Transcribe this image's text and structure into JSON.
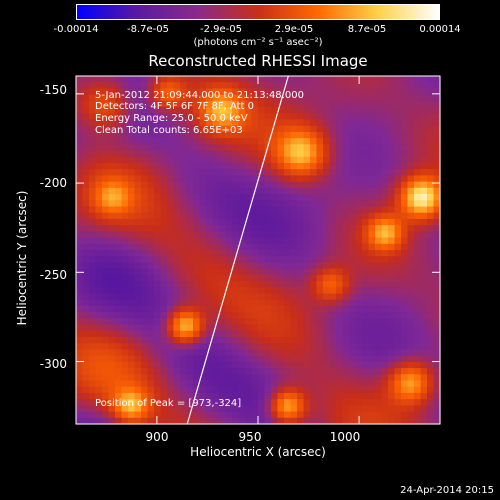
{
  "colorbar": {
    "ticks": [
      "-0.00014",
      "-8.7e-05",
      "-2.9e-05",
      "2.9e-05",
      "8.7e-05",
      "0.00014"
    ],
    "unit": "(photons cm⁻² s⁻¹ asec⁻²)",
    "colors": [
      "#0000ff",
      "#5a1aa0",
      "#8a2a8a",
      "#c83018",
      "#ff6a00",
      "#ffd24a",
      "#ffffff"
    ]
  },
  "annotations": {
    "line1": "5-Jan-2012 21:09:44.000 to 21:13:48.000",
    "line2": "Detectors: 4F 5F 6F 7F 8F, Att 0",
    "line3": "Energy Range: 25.0 - 50.0 keV",
    "line4": "Clean    Total counts: 6.65E+03",
    "peak": "Position of Peak = [973,-324]"
  },
  "footer": {
    "date": "24-Apr-2014 20:15"
  },
  "chart_data": {
    "type": "heatmap",
    "title": "Reconstructed RHESSI Image",
    "xlabel": "Heliocentric X (arcsec)",
    "ylabel": "Heliocentric Y (arcsec)",
    "xlim": [
      860,
      1040
    ],
    "ylim": [
      -335,
      -140
    ],
    "xticks": [
      "900",
      "950",
      "1000"
    ],
    "xtick_values": [
      900,
      950,
      1000
    ],
    "yticks": [
      "-150",
      "-200",
      "-250",
      "-300"
    ],
    "ytick_values": [
      -150,
      -200,
      -250,
      -300
    ],
    "zlim": [
      -0.00014,
      0.00014
    ],
    "limb_line": {
      "x": [
        915,
        965
      ],
      "y": [
        -335,
        -140
      ]
    },
    "peak": {
      "x": 973,
      "y": -324
    }
  }
}
